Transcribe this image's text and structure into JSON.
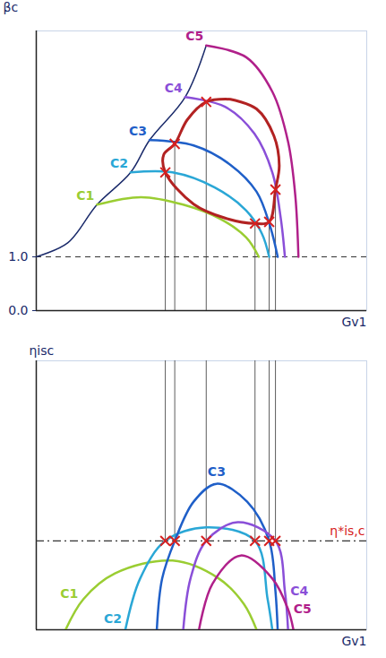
{
  "chart_data": [
    {
      "type": "line",
      "y_label": "βc",
      "x_label": "Gv1",
      "xlim": [
        0,
        10.5
      ],
      "ylim": [
        0,
        5.2
      ],
      "xticks": [],
      "yticks": [
        0,
        1
      ],
      "tick_labels": "y",
      "series": [
        {
          "name": "C1",
          "color": "#9acd32",
          "x": [
            1.93,
            3.33,
            4.67,
            5.83,
            6.67,
            7.07
          ],
          "values": [
            1.97,
            2.11,
            1.97,
            1.71,
            1.36,
            1.0
          ]
        },
        {
          "name": "C2",
          "color": "#2aa7d6",
          "x": [
            3.0,
            4.33,
            5.67,
            6.67,
            7.17,
            7.4
          ],
          "values": [
            2.57,
            2.57,
            2.29,
            1.86,
            1.43,
            1.0
          ]
        },
        {
          "name": "C3",
          "color": "#1f5fc8",
          "x": [
            3.6,
            5.0,
            6.17,
            7.0,
            7.43,
            7.67
          ],
          "values": [
            3.17,
            3.07,
            2.71,
            2.21,
            1.57,
            1.0
          ]
        },
        {
          "name": "C4",
          "color": "#8a4fd8",
          "x": [
            4.73,
            6.0,
            6.93,
            7.5,
            7.77,
            7.9
          ],
          "values": [
            3.97,
            3.79,
            3.29,
            2.57,
            1.71,
            1.0
          ]
        },
        {
          "name": "C5",
          "color": "#b0208a",
          "x": [
            5.4,
            6.67,
            7.5,
            8.0,
            8.23,
            8.33
          ],
          "values": [
            4.93,
            4.71,
            4.07,
            3.14,
            2.14,
            1.0
          ]
        }
      ],
      "surge_line": {
        "color": "#1a2a6a",
        "x": [
          0,
          1.0,
          1.93,
          3.0,
          3.6,
          4.73,
          5.4
        ],
        "values": [
          1.0,
          1.26,
          1.97,
          2.57,
          3.17,
          3.97,
          4.93
        ]
      },
      "efficiency_island": {
        "color": "#b22222",
        "x": [
          6.17,
          7.0,
          7.55,
          7.72,
          7.6,
          7.4,
          6.95,
          6.0,
          5.0,
          4.1,
          4.05,
          4.4,
          4.8,
          5.4,
          6.17
        ],
        "values": [
          3.93,
          3.75,
          3.25,
          2.7,
          2.25,
          1.65,
          1.62,
          1.72,
          1.98,
          2.57,
          2.9,
          3.1,
          3.55,
          3.88,
          3.93
        ]
      },
      "crosses": {
        "color": "#d62020",
        "marker": "x",
        "x": [
          4.1,
          6.95,
          4.4,
          7.4,
          5.4,
          7.6
        ],
        "values": [
          2.57,
          1.62,
          3.1,
          1.65,
          3.88,
          2.25
        ]
      },
      "reference_line": {
        "value": 1,
        "line_style": "dashed"
      }
    },
    {
      "type": "line",
      "y_label": "ηisc",
      "x_label": "Gv1",
      "xlim": [
        0,
        10.5
      ],
      "ylim": [
        0,
        1.05
      ],
      "xticks": [],
      "yticks": [],
      "tick_labels": false,
      "series": [
        {
          "name": "C1",
          "color": "#9acd32",
          "x": [
            0.93,
            1.5,
            2.5,
            4.33,
            5.8,
            6.6,
            7.0
          ],
          "values": [
            0,
            0.12,
            0.22,
            0.27,
            0.2,
            0.1,
            0
          ]
        },
        {
          "name": "C2",
          "color": "#2aa7d6",
          "x": [
            2.83,
            3.3,
            4.1,
            5.4,
            6.95,
            7.35,
            7.5
          ],
          "values": [
            0,
            0.2,
            0.347,
            0.4,
            0.347,
            0.12,
            0
          ]
        },
        {
          "name": "C3",
          "color": "#1f5fc8",
          "x": [
            3.83,
            4.0,
            4.4,
            5.0,
            5.73,
            6.7,
            7.4,
            7.6,
            7.67
          ],
          "values": [
            0,
            0.2,
            0.347,
            0.5,
            0.57,
            0.5,
            0.347,
            0.15,
            0
          ]
        },
        {
          "name": "C4",
          "color": "#8a4fd8",
          "x": [
            4.67,
            4.9,
            5.4,
            6.4,
            7.6,
            7.9,
            8.0
          ],
          "values": [
            0,
            0.2,
            0.347,
            0.42,
            0.347,
            0.15,
            0
          ]
        },
        {
          "name": "C5",
          "color": "#b0208a",
          "x": [
            5.17,
            5.6,
            6.5,
            7.5,
            8.0,
            8.17
          ],
          "values": [
            0,
            0.18,
            0.29,
            0.2,
            0.08,
            0
          ]
        }
      ],
      "crosses": {
        "color": "#d62020",
        "marker": "x",
        "x": [
          4.1,
          6.95,
          4.4,
          7.4,
          5.4,
          7.6
        ],
        "values": [
          0.347,
          0.347,
          0.347,
          0.347,
          0.347,
          0.347
        ]
      },
      "reference_line": {
        "value": 0.347,
        "label": "η*is,c",
        "color": "#d62020",
        "line_style": "dashdot"
      }
    }
  ]
}
